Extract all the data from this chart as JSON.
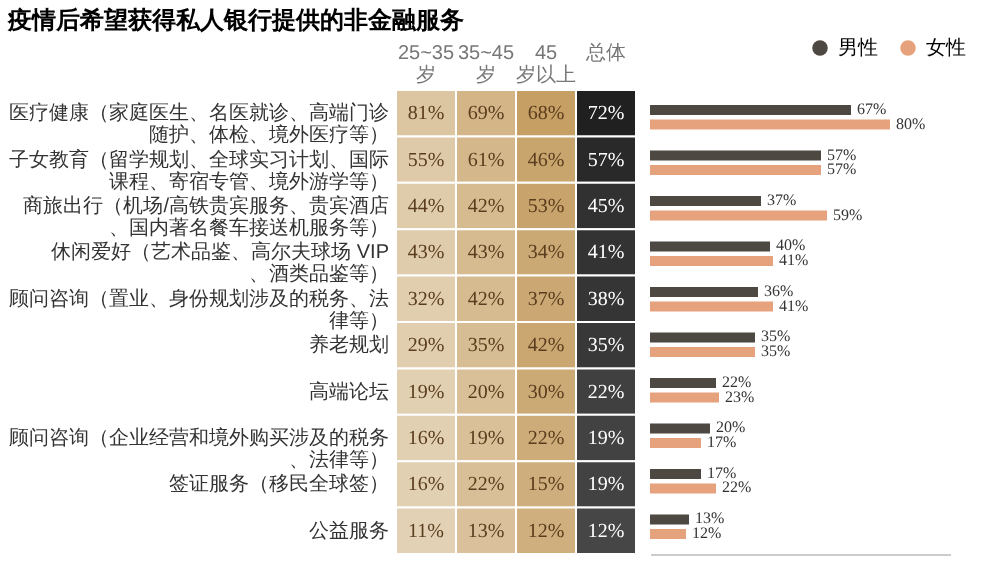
{
  "chart_data": [
    {
      "type": "heatmap",
      "title": "疫情后希望获得私人银行提供的非金融服务",
      "categories": [
        "25~35 岁",
        "35~45 岁",
        "45 岁以上",
        "总体"
      ],
      "y_categories": [
        "医疗健康（家庭医生、名医就诊、高端门诊随护、体检、境外医疗等）",
        "子女教育（留学规划、全球实习计划、国际课程、寄宿专管、境外游学等）",
        "商旅出行（机场/高铁贵宾服务、贵宾酒店、国内著名餐车接送机服务等）",
        "休闲爱好（艺术品鉴、高尔夫球场 VIP、酒类品鉴等）",
        "顾问咨询（置业、身份规划涉及的税务、法律等）",
        "养老规划",
        "高端论坛",
        "顾问咨询（企业经营和境外购买涉及的税务、法律等）",
        "签证服务（移民全球签）",
        "公益服务"
      ],
      "colors": [
        "#dcc6a2",
        "#d2b383",
        "#c49c5f",
        "#1a1a1a"
      ],
      "cells": [
        [
          81,
          69,
          68,
          72
        ],
        [
          55,
          61,
          46,
          57
        ],
        [
          44,
          42,
          53,
          45
        ],
        [
          43,
          43,
          34,
          41
        ],
        [
          32,
          42,
          37,
          38
        ],
        [
          29,
          35,
          42,
          35
        ],
        [
          19,
          20,
          30,
          22
        ],
        [
          16,
          19,
          22,
          19
        ],
        [
          16,
          22,
          15,
          19
        ],
        [
          11,
          13,
          12,
          12
        ]
      ],
      "cell_labels": [
        [
          "81%",
          "69%",
          "68%",
          "72%"
        ],
        [
          "55%",
          "61%",
          "46%",
          "57%"
        ],
        [
          "44%",
          "42%",
          "53%",
          "45%"
        ],
        [
          "43%",
          "43%",
          "34%",
          "41%"
        ],
        [
          "32%",
          "42%",
          "37%",
          "38%"
        ],
        [
          "29%",
          "35%",
          "42%",
          "35%"
        ],
        [
          "19%",
          "20%",
          "30%",
          "22%"
        ],
        [
          "16%",
          "19%",
          "22%",
          "19%"
        ],
        [
          "16%",
          "22%",
          "15%",
          "19%"
        ],
        [
          "11%",
          "13%",
          "12%",
          "12%"
        ]
      ]
    },
    {
      "type": "bar",
      "orientation": "horizontal",
      "tick_labels": false,
      "legend": "top",
      "xlim": [
        0,
        100
      ],
      "series": [
        {
          "name": "男性",
          "color": "#4d4842",
          "values": [
            67,
            57,
            37,
            40,
            36,
            35,
            22,
            20,
            17,
            13
          ],
          "value_labels": [
            "67%",
            "57%",
            "37%",
            "40%",
            "36%",
            "35%",
            "22%",
            "20%",
            "17%",
            "13%"
          ]
        },
        {
          "name": "女性",
          "color": "#e6a27c",
          "values": [
            80,
            57,
            59,
            41,
            41,
            35,
            23,
            17,
            22,
            12
          ],
          "value_labels": [
            "80%",
            "57%",
            "59%",
            "41%",
            "41%",
            "35%",
            "23%",
            "17%",
            "22%",
            "12%"
          ]
        }
      ]
    }
  ]
}
